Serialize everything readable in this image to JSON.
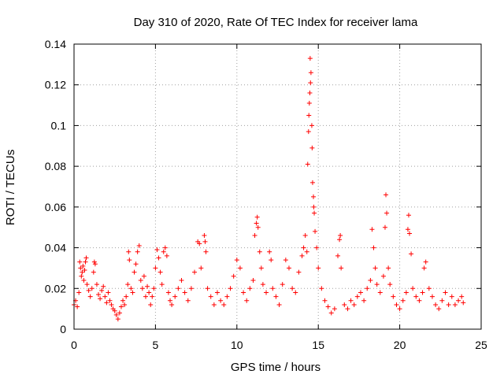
{
  "chart_data": {
    "type": "scatter",
    "title": "Day 310 of 2020, Rate Of TEC Index for receiver lama",
    "xlabel": "GPS time / hours",
    "ylabel": "ROTI / TECUs",
    "xlim": [
      0,
      25
    ],
    "ylim": [
      0,
      0.14
    ],
    "xticks": [
      0,
      5,
      10,
      15,
      20,
      25
    ],
    "yticks": [
      0,
      0.02,
      0.04,
      0.06,
      0.08,
      0.1,
      0.12,
      0.14
    ],
    "xtick_labels": [
      "0",
      "5",
      "10",
      "15",
      "20",
      "25"
    ],
    "ytick_labels": [
      "0",
      "0.02",
      "0.04",
      "0.06",
      "0.08",
      "0.1",
      "0.12",
      "0.14"
    ],
    "grid": true,
    "marker": "+",
    "color": "#ff0000",
    "series": [
      {
        "points": [
          [
            0.0,
            0.012
          ],
          [
            0.1,
            0.014
          ],
          [
            0.2,
            0.011
          ],
          [
            0.3,
            0.018
          ],
          [
            0.35,
            0.033
          ],
          [
            0.4,
            0.03
          ],
          [
            0.45,
            0.026
          ],
          [
            0.5,
            0.028
          ],
          [
            0.55,
            0.031
          ],
          [
            0.6,
            0.024
          ],
          [
            0.65,
            0.029
          ],
          [
            0.7,
            0.033
          ],
          [
            0.75,
            0.035
          ],
          [
            0.8,
            0.022
          ],
          [
            0.9,
            0.019
          ],
          [
            1.0,
            0.016
          ],
          [
            1.1,
            0.02
          ],
          [
            1.2,
            0.028
          ],
          [
            1.25,
            0.033
          ],
          [
            1.3,
            0.032
          ],
          [
            1.4,
            0.022
          ],
          [
            1.5,
            0.017
          ],
          [
            1.6,
            0.015
          ],
          [
            1.7,
            0.019
          ],
          [
            1.8,
            0.021
          ],
          [
            1.9,
            0.016
          ],
          [
            2.0,
            0.013
          ],
          [
            2.1,
            0.018
          ],
          [
            2.2,
            0.014
          ],
          [
            2.3,
            0.012
          ],
          [
            2.4,
            0.01
          ],
          [
            2.5,
            0.009
          ],
          [
            2.6,
            0.007
          ],
          [
            2.7,
            0.005
          ],
          [
            2.8,
            0.008
          ],
          [
            2.9,
            0.011
          ],
          [
            3.0,
            0.014
          ],
          [
            3.1,
            0.012
          ],
          [
            3.2,
            0.016
          ],
          [
            3.3,
            0.022
          ],
          [
            3.35,
            0.038
          ],
          [
            3.4,
            0.034
          ],
          [
            3.5,
            0.02
          ],
          [
            3.6,
            0.018
          ],
          [
            3.7,
            0.028
          ],
          [
            3.8,
            0.032
          ],
          [
            3.9,
            0.038
          ],
          [
            4.0,
            0.041
          ],
          [
            4.1,
            0.024
          ],
          [
            4.2,
            0.02
          ],
          [
            4.3,
            0.026
          ],
          [
            4.4,
            0.016
          ],
          [
            4.5,
            0.021
          ],
          [
            4.6,
            0.018
          ],
          [
            4.7,
            0.012
          ],
          [
            4.8,
            0.016
          ],
          [
            4.9,
            0.02
          ],
          [
            5.0,
            0.03
          ],
          [
            5.1,
            0.039
          ],
          [
            5.2,
            0.035
          ],
          [
            5.3,
            0.028
          ],
          [
            5.4,
            0.022
          ],
          [
            5.5,
            0.038
          ],
          [
            5.6,
            0.04
          ],
          [
            5.7,
            0.036
          ],
          [
            5.8,
            0.018
          ],
          [
            5.9,
            0.014
          ],
          [
            6.0,
            0.012
          ],
          [
            6.2,
            0.016
          ],
          [
            6.4,
            0.02
          ],
          [
            6.6,
            0.024
          ],
          [
            6.8,
            0.018
          ],
          [
            7.0,
            0.014
          ],
          [
            7.2,
            0.02
          ],
          [
            7.4,
            0.028
          ],
          [
            7.6,
            0.043
          ],
          [
            7.7,
            0.042
          ],
          [
            7.8,
            0.03
          ],
          [
            8.0,
            0.046
          ],
          [
            8.05,
            0.043
          ],
          [
            8.1,
            0.038
          ],
          [
            8.2,
            0.02
          ],
          [
            8.4,
            0.016
          ],
          [
            8.6,
            0.012
          ],
          [
            8.8,
            0.018
          ],
          [
            9.0,
            0.014
          ],
          [
            9.2,
            0.012
          ],
          [
            9.4,
            0.016
          ],
          [
            9.6,
            0.02
          ],
          [
            9.8,
            0.026
          ],
          [
            10.0,
            0.034
          ],
          [
            10.2,
            0.03
          ],
          [
            10.4,
            0.018
          ],
          [
            10.6,
            0.014
          ],
          [
            10.8,
            0.02
          ],
          [
            11.0,
            0.024
          ],
          [
            11.1,
            0.046
          ],
          [
            11.2,
            0.052
          ],
          [
            11.25,
            0.055
          ],
          [
            11.3,
            0.05
          ],
          [
            11.4,
            0.038
          ],
          [
            11.5,
            0.03
          ],
          [
            11.6,
            0.022
          ],
          [
            11.8,
            0.018
          ],
          [
            12.0,
            0.038
          ],
          [
            12.1,
            0.034
          ],
          [
            12.2,
            0.02
          ],
          [
            12.4,
            0.016
          ],
          [
            12.6,
            0.012
          ],
          [
            12.8,
            0.022
          ],
          [
            13.0,
            0.034
          ],
          [
            13.2,
            0.03
          ],
          [
            13.4,
            0.02
          ],
          [
            13.6,
            0.018
          ],
          [
            13.8,
            0.028
          ],
          [
            14.0,
            0.036
          ],
          [
            14.1,
            0.04
          ],
          [
            14.2,
            0.046
          ],
          [
            14.3,
            0.038
          ],
          [
            14.35,
            0.081
          ],
          [
            14.4,
            0.097
          ],
          [
            14.42,
            0.105
          ],
          [
            14.45,
            0.111
          ],
          [
            14.48,
            0.116
          ],
          [
            14.5,
            0.133
          ],
          [
            14.52,
            0.121
          ],
          [
            14.55,
            0.126
          ],
          [
            14.6,
            0.1
          ],
          [
            14.62,
            0.089
          ],
          [
            14.65,
            0.072
          ],
          [
            14.7,
            0.065
          ],
          [
            14.72,
            0.06
          ],
          [
            14.75,
            0.057
          ],
          [
            14.8,
            0.048
          ],
          [
            14.9,
            0.04
          ],
          [
            15.0,
            0.03
          ],
          [
            15.2,
            0.02
          ],
          [
            15.4,
            0.014
          ],
          [
            15.6,
            0.011
          ],
          [
            15.8,
            0.008
          ],
          [
            16.0,
            0.01
          ],
          [
            16.2,
            0.036
          ],
          [
            16.3,
            0.044
          ],
          [
            16.35,
            0.046
          ],
          [
            16.4,
            0.03
          ],
          [
            16.6,
            0.012
          ],
          [
            16.8,
            0.01
          ],
          [
            17.0,
            0.014
          ],
          [
            17.2,
            0.012
          ],
          [
            17.4,
            0.016
          ],
          [
            17.6,
            0.018
          ],
          [
            17.8,
            0.014
          ],
          [
            18.0,
            0.02
          ],
          [
            18.2,
            0.024
          ],
          [
            18.3,
            0.049
          ],
          [
            18.4,
            0.04
          ],
          [
            18.5,
            0.03
          ],
          [
            18.6,
            0.022
          ],
          [
            18.8,
            0.018
          ],
          [
            19.0,
            0.026
          ],
          [
            19.1,
            0.05
          ],
          [
            19.15,
            0.066
          ],
          [
            19.2,
            0.057
          ],
          [
            19.3,
            0.03
          ],
          [
            19.4,
            0.022
          ],
          [
            19.6,
            0.016
          ],
          [
            19.8,
            0.012
          ],
          [
            20.0,
            0.01
          ],
          [
            20.2,
            0.014
          ],
          [
            20.4,
            0.018
          ],
          [
            20.5,
            0.049
          ],
          [
            20.55,
            0.056
          ],
          [
            20.6,
            0.047
          ],
          [
            20.7,
            0.037
          ],
          [
            20.8,
            0.02
          ],
          [
            21.0,
            0.016
          ],
          [
            21.2,
            0.014
          ],
          [
            21.4,
            0.018
          ],
          [
            21.5,
            0.03
          ],
          [
            21.6,
            0.033
          ],
          [
            21.8,
            0.02
          ],
          [
            22.0,
            0.016
          ],
          [
            22.2,
            0.012
          ],
          [
            22.4,
            0.01
          ],
          [
            22.6,
            0.014
          ],
          [
            22.8,
            0.018
          ],
          [
            23.0,
            0.012
          ],
          [
            23.2,
            0.016
          ],
          [
            23.4,
            0.012
          ],
          [
            23.6,
            0.014
          ],
          [
            23.8,
            0.016
          ],
          [
            23.9,
            0.013
          ]
        ]
      }
    ]
  }
}
